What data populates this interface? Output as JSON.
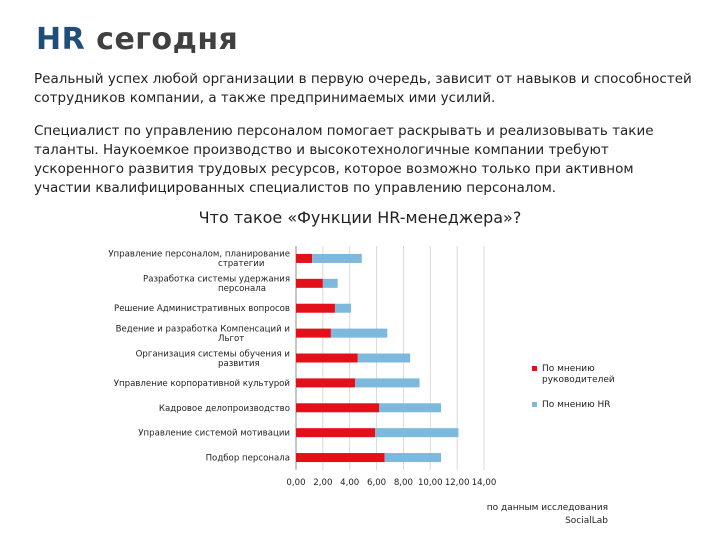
{
  "header": {
    "title_accent": "HR",
    "title_rest": "сегодня"
  },
  "text": {
    "paragraph1": "Реальный успех любой организации в первую очередь, зависит от навыков и способностей сотрудников компании, а также предпринимаемых ими усилий.",
    "paragraph2": "Специалист по управлению персоналом помогает раскрывать и реализовывать такие таланты. Наукоемкое производство и высокотехнологичные компании требуют ускоренного развития трудовых ресурсов, которое возможно только при активном участии квалифицированных специалистов по управлению персоналом."
  },
  "source": {
    "line1": "по данным исследования",
    "line2": "SocialLab"
  },
  "chart_data": {
    "type": "bar",
    "orientation": "horizontal",
    "stacked": true,
    "title": "Что такое «Функции HR-менеджера»?",
    "categories": [
      [
        "Управление персоналом, планирование",
        "стратегии"
      ],
      [
        "Разработка системы удержания",
        "персонала"
      ],
      [
        "Решение Административных вопросов"
      ],
      [
        "Ведение и разработка Компенсаций и",
        "Льгот"
      ],
      [
        "Организация системы обучения и",
        "развития"
      ],
      [
        "Управление корпоративной культурой"
      ],
      [
        "Кадровое делопроизводство"
      ],
      [
        "Управление системой мотивации"
      ],
      [
        "Подбор персонала"
      ]
    ],
    "series": [
      {
        "name": "По мнению руководителей",
        "color": "#e3101a",
        "values": [
          1.2,
          2.0,
          2.9,
          2.6,
          4.6,
          4.4,
          6.2,
          5.9,
          6.6
        ]
      },
      {
        "name": "По мнению HR",
        "color": "#7cb9dc",
        "values": [
          3.7,
          1.1,
          1.2,
          4.2,
          3.9,
          4.8,
          4.6,
          6.2,
          4.2
        ]
      }
    ],
    "xlim": [
      0,
      14
    ],
    "xticks": [
      "0,00",
      "2,00",
      "4,00",
      "6,00",
      "8,00",
      "10,00",
      "12,00",
      "14,00"
    ],
    "grid": true,
    "legend_position": "right"
  }
}
